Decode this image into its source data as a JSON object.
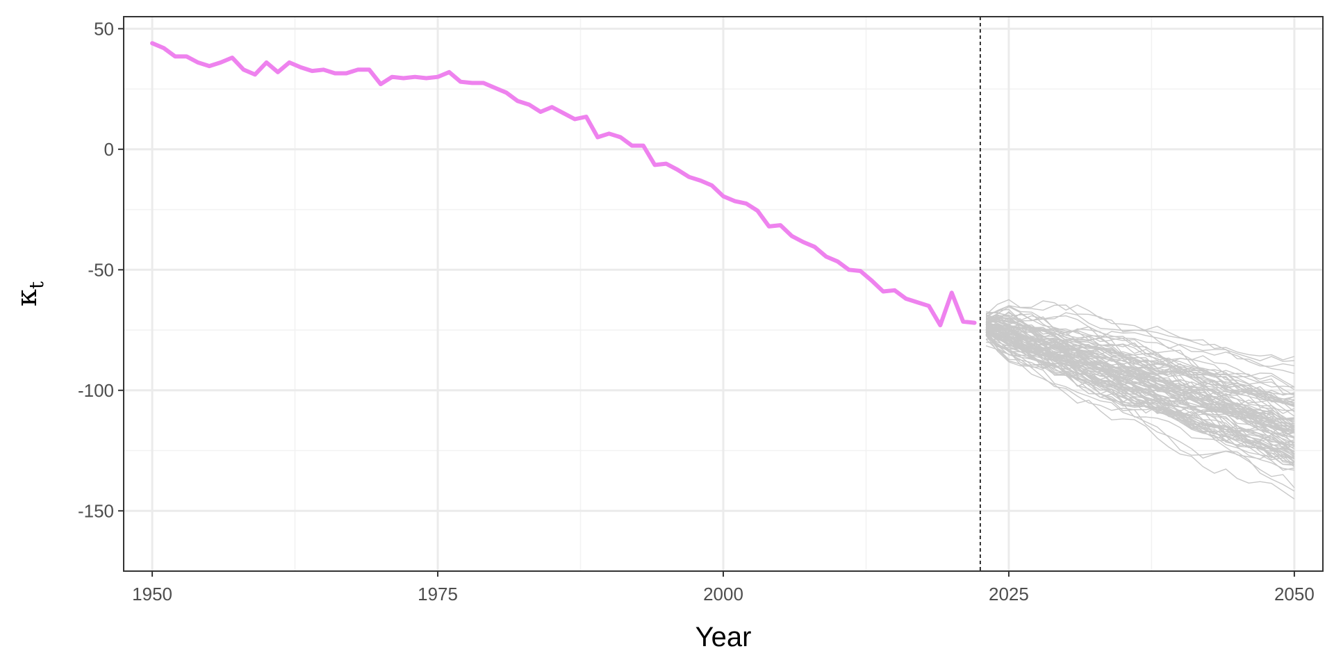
{
  "chart_data": {
    "type": "line",
    "xlabel": "Year",
    "ylabel": "κ",
    "ylabel_subscript": "t",
    "xlim": [
      1947.5,
      2052.5
    ],
    "ylim": [
      -175,
      55
    ],
    "x_ticks": [
      1950,
      1975,
      2000,
      2025,
      2050
    ],
    "x_tick_labels": [
      "1950",
      "1975",
      "2000",
      "2025",
      "2050"
    ],
    "y_ticks": [
      50,
      0,
      -50,
      -100,
      -150
    ],
    "y_tick_labels": [
      "50",
      "0",
      "-50",
      "-100",
      "-150"
    ],
    "grid": true,
    "legend": "none",
    "forecast_start_line_x": 2022.5,
    "colors": {
      "historical": "#EE82EE",
      "simulations": "#C8C8C8",
      "grid_major": "#EBEBEB",
      "grid_minor": "#F2F2F2",
      "panel_border": "#333333",
      "divider": "#000000"
    },
    "series": [
      {
        "x": [
          1950,
          1951,
          1952,
          1953,
          1954,
          1955,
          1956,
          1957,
          1958,
          1959,
          1960,
          1961,
          1962,
          1963,
          1964,
          1965,
          1966,
          1967,
          1968,
          1969,
          1970,
          1971,
          1972,
          1973,
          1974,
          1975,
          1976,
          1977,
          1978,
          1979,
          1980,
          1981,
          1982,
          1983,
          1984,
          1985,
          1986,
          1987,
          1988,
          1989,
          1990,
          1991,
          1992,
          1993,
          1994,
          1995,
          1996,
          1997,
          1998,
          1999,
          2000,
          2001,
          2002,
          2003,
          2004,
          2005,
          2006,
          2007,
          2008,
          2009,
          2010,
          2011,
          2012,
          2013,
          2014,
          2015,
          2016,
          2017,
          2018,
          2019,
          2020,
          2021,
          2022
        ],
        "values": [
          44,
          42,
          38.5,
          38.5,
          36,
          34.5,
          36,
          38,
          33,
          31,
          36,
          32,
          36,
          34,
          32.5,
          33,
          31.5,
          31.5,
          33,
          33,
          27,
          30,
          29.5,
          30,
          29.5,
          30,
          32,
          28,
          27.5,
          27.5,
          25.5,
          23.5,
          20,
          18.5,
          15.5,
          17.5,
          15,
          12.5,
          13.5,
          5,
          6.5,
          5,
          1.5,
          1.5,
          -6.5,
          -6,
          -8.5,
          -11.5,
          -13,
          -15,
          -19.5,
          -21.5,
          -22.5,
          -25.5,
          -32,
          -31.5,
          -36,
          -38.5,
          -40.5,
          -44.5,
          -46.5,
          -50,
          -50.5,
          -54.5,
          -59,
          -58.5,
          -62,
          -63.5,
          -65,
          -73,
          -59.5,
          -71.5,
          -72
        ]
      }
    ],
    "simulations": {
      "x_range": [
        2023,
        2050
      ],
      "count": 100,
      "start_mean": -74,
      "start_spread": 4,
      "end_mean": -118,
      "end_spread": 20,
      "band_center": [
        [
          2023,
          -74
        ],
        [
          2025,
          -79
        ],
        [
          2030,
          -87
        ],
        [
          2035,
          -95
        ],
        [
          2040,
          -104
        ],
        [
          2045,
          -112
        ],
        [
          2050,
          -118
        ]
      ],
      "band_upper": [
        [
          2023,
          -60
        ],
        [
          2025,
          -60
        ],
        [
          2027,
          -59
        ],
        [
          2030,
          -56
        ],
        [
          2035,
          -62
        ],
        [
          2040,
          -65
        ],
        [
          2045,
          -72
        ],
        [
          2050,
          -68
        ]
      ],
      "band_lower": [
        [
          2023,
          -84
        ],
        [
          2025,
          -90
        ],
        [
          2030,
          -106
        ],
        [
          2035,
          -122
        ],
        [
          2040,
          -137
        ],
        [
          2045,
          -153
        ],
        [
          2050,
          -165
        ]
      ]
    }
  }
}
